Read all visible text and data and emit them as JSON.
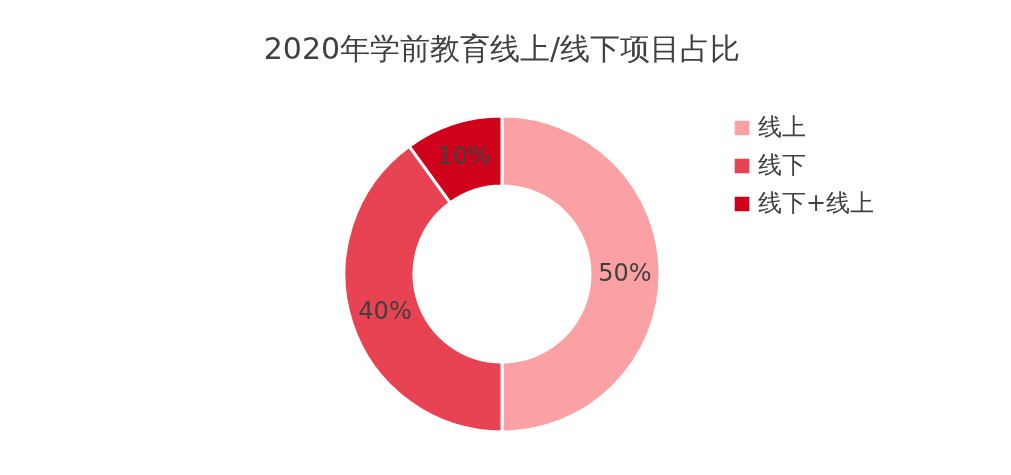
{
  "chart_data": {
    "type": "donut",
    "title": "2020年学前教育线上/线下项目占比",
    "categories": [
      "线上",
      "线下",
      "线下+线上"
    ],
    "values": [
      50,
      40,
      10
    ],
    "colors": [
      "#fca1a3",
      "#e84352",
      "#d0021b"
    ],
    "value_labels": [
      "50%",
      "40%",
      "10%"
    ],
    "legend": "right"
  }
}
